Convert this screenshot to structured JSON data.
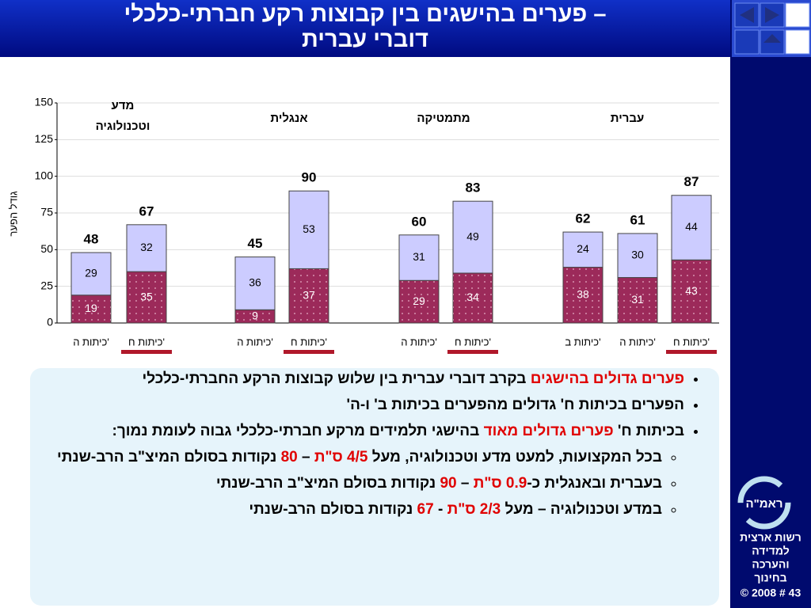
{
  "header": {
    "title_lines": [
      "פערים בהישגים בין קבוצות רקע חברתי-כלכלי –",
      "דוברי עברית"
    ]
  },
  "chart_data": {
    "type": "stacked-bar",
    "ylabel": "גודל הפער",
    "groups": [
      [
        "מדע",
        "וטכנולוגיה"
      ],
      [
        "אנגלית"
      ],
      [
        "מתמטיקה"
      ],
      [
        "עברית"
      ]
    ],
    "categories": [
      "כיתות ה'",
      "כיתות ח'",
      "כיתות ה'",
      "כיתות ח'",
      "כיתות ה'",
      "כיתות ח'",
      "כיתות ב'",
      "כיתות ה'",
      "כיתות ח'"
    ],
    "series": [
      {
        "color": "#9c2a5a",
        "values": [
          19,
          35,
          9,
          37,
          29,
          34,
          38,
          31,
          43
        ]
      },
      {
        "color": "#ccccff",
        "values": [
          29,
          32,
          36,
          53,
          31,
          49,
          24,
          30,
          44
        ]
      }
    ],
    "totals": [
      48,
      67,
      45,
      90,
      60,
      83,
      62,
      61,
      87
    ],
    "ylim": [
      0,
      150
    ],
    "yticks": [
      0,
      25,
      50,
      75,
      100,
      125,
      150
    ],
    "grid": true
  },
  "body": {
    "bullets": [
      {
        "parts": [
          {
            "text": "פערים גדולים בהישגים",
            "em": true
          },
          {
            "text": " בקרב דוברי עברית בין שלוש קבוצות הרקע החברתי-כלכלי"
          }
        ]
      },
      {
        "parts": [
          {
            "text": "הפערים בכיתות ח' גדולים מהפערים בכיתות ב' ו-ה'"
          }
        ]
      },
      {
        "parts": [
          {
            "text": "בכיתות ח' "
          },
          {
            "text": "פערים גדולים מאוד",
            "em": true
          },
          {
            "text": " בהישגי תלמידים מרקע חברתי-כלכלי גבוה לעומת נמוך:"
          }
        ],
        "sub": [
          {
            "parts": [
              {
                "text": "בכל המקצועות, למעט מדע וטכנולוגיה, מעל "
              },
              {
                "text": "4/5 ס\"ת",
                "em": true
              },
              {
                "text": " – "
              },
              {
                "text": "80",
                "em": true
              },
              {
                "text": " נקודות בסולם המיצ\"ב הרב-שנתי"
              }
            ]
          },
          {
            "parts": [
              {
                "text": "בעברית ובאנגלית כ-"
              },
              {
                "text": "0.9 ס\"ת",
                "em": true
              },
              {
                "text": " – "
              },
              {
                "text": "90",
                "em": true
              },
              {
                "text": " נקודות בסולם המיצ\"ב הרב-שנתי"
              }
            ]
          },
          {
            "parts": [
              {
                "text": "במדע וטכנולוגיה – מעל "
              },
              {
                "text": "2/3 ס\"ת",
                "em": true
              },
              {
                "text": " - "
              },
              {
                "text": "67",
                "em": true
              },
              {
                "text": " נקודות בסולם הרב-שנתי"
              }
            ]
          }
        ]
      }
    ]
  },
  "sidebar": {
    "logo": "ראמ\"ה",
    "org_lines": [
      "רשות ארצית",
      "למדידה",
      "והערכה",
      "בחינוך"
    ],
    "footer": "© 2008 # 43"
  }
}
